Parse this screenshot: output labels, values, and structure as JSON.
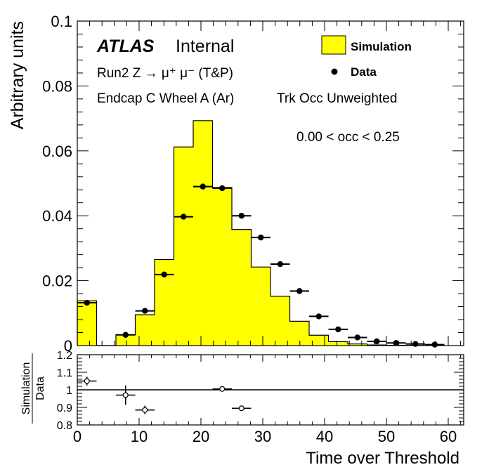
{
  "chart_data": [
    {
      "type": "histogram",
      "ylabel": "Arbitrary units",
      "xlabel": "Time over Threshold",
      "xlim": [
        0,
        62.5
      ],
      "ylim": [
        0,
        0.1
      ],
      "yticks": [
        "0",
        "0.02",
        "0.04",
        "0.06",
        "0.08",
        "0.1"
      ],
      "xticks": [
        "0",
        "10",
        "20",
        "30",
        "40",
        "50",
        "60"
      ],
      "annotations": {
        "atlas": "ATLAS",
        "internal": "Internal",
        "process": "Run2 Z → μ⁺ μ⁻ (T&P)",
        "region": "Endcap C Wheel A (Ar)",
        "weighting": "Trk Occ Unweighted",
        "occupancy": "0.00 < occ < 0.25"
      },
      "legend": {
        "placement": "top-right",
        "simulation": "Simulation",
        "data": "Data"
      },
      "bin_width": 3.125,
      "series": [
        {
          "name": "Simulation",
          "color": "#ffff00",
          "bins": [
            {
              "x0": 0.0,
              "x1": 3.125,
              "y": 0.0138
            },
            {
              "x0": 3.125,
              "x1": 6.25,
              "y": 0.0
            },
            {
              "x0": 6.25,
              "x1": 9.375,
              "y": 0.0033
            },
            {
              "x0": 9.375,
              "x1": 12.5,
              "y": 0.0095
            },
            {
              "x0": 12.5,
              "x1": 15.625,
              "y": 0.0265
            },
            {
              "x0": 15.625,
              "x1": 18.75,
              "y": 0.0612
            },
            {
              "x0": 18.75,
              "x1": 21.875,
              "y": 0.0693
            },
            {
              "x0": 21.875,
              "x1": 25.0,
              "y": 0.0487
            },
            {
              "x0": 25.0,
              "x1": 28.125,
              "y": 0.0358
            },
            {
              "x0": 28.125,
              "x1": 31.25,
              "y": 0.0242
            },
            {
              "x0": 31.25,
              "x1": 34.375,
              "y": 0.0152
            },
            {
              "x0": 34.375,
              "x1": 37.5,
              "y": 0.0075
            },
            {
              "x0": 37.5,
              "x1": 40.625,
              "y": 0.0032
            },
            {
              "x0": 40.625,
              "x1": 43.75,
              "y": 0.0012
            },
            {
              "x0": 43.75,
              "x1": 46.875,
              "y": 0.0005
            },
            {
              "x0": 46.875,
              "x1": 50.0,
              "y": 0.0002
            },
            {
              "x0": 50.0,
              "x1": 53.125,
              "y": 0.0001
            },
            {
              "x0": 53.125,
              "x1": 56.25,
              "y": 5e-05
            },
            {
              "x0": 56.25,
              "x1": 59.375,
              "y": 2e-05
            }
          ]
        },
        {
          "name": "Data",
          "color": "#000000",
          "points": [
            {
              "x": 1.5625,
              "y": 0.0132
            },
            {
              "x": 7.8125,
              "y": 0.0033
            },
            {
              "x": 10.9375,
              "y": 0.0107
            },
            {
              "x": 14.0625,
              "y": 0.0219
            },
            {
              "x": 17.1875,
              "y": 0.0397
            },
            {
              "x": 20.3125,
              "y": 0.049
            },
            {
              "x": 23.4375,
              "y": 0.0485
            },
            {
              "x": 26.5625,
              "y": 0.04
            },
            {
              "x": 29.6875,
              "y": 0.0333
            },
            {
              "x": 32.8125,
              "y": 0.0251
            },
            {
              "x": 35.9375,
              "y": 0.0168
            },
            {
              "x": 39.0625,
              "y": 0.009
            },
            {
              "x": 42.1875,
              "y": 0.005
            },
            {
              "x": 45.3125,
              "y": 0.0025
            },
            {
              "x": 48.4375,
              "y": 0.0013
            },
            {
              "x": 51.5625,
              "y": 0.0008
            },
            {
              "x": 54.6875,
              "y": 0.0005
            },
            {
              "x": 57.8125,
              "y": 0.0003
            }
          ]
        }
      ]
    },
    {
      "type": "scatter",
      "ylabel_numerator": "Simulation",
      "ylabel_denominator": "Data",
      "xlim": [
        0,
        62.5
      ],
      "ylim": [
        0.8,
        1.2
      ],
      "yticks": [
        "0.8",
        "0.9",
        "1",
        "1.1",
        "1.2"
      ],
      "reference_line": 1.0,
      "points": [
        {
          "x": 1.5625,
          "y": 1.05,
          "yerr": 0.025
        },
        {
          "x": 7.8125,
          "y": 0.97,
          "yerr": 0.055
        },
        {
          "x": 10.9375,
          "y": 0.885,
          "yerr": 0.025
        },
        {
          "x": 23.4375,
          "y": 1.005,
          "yerr": 0.006
        },
        {
          "x": 26.5625,
          "y": 0.895,
          "yerr": 0.006
        }
      ]
    }
  ]
}
